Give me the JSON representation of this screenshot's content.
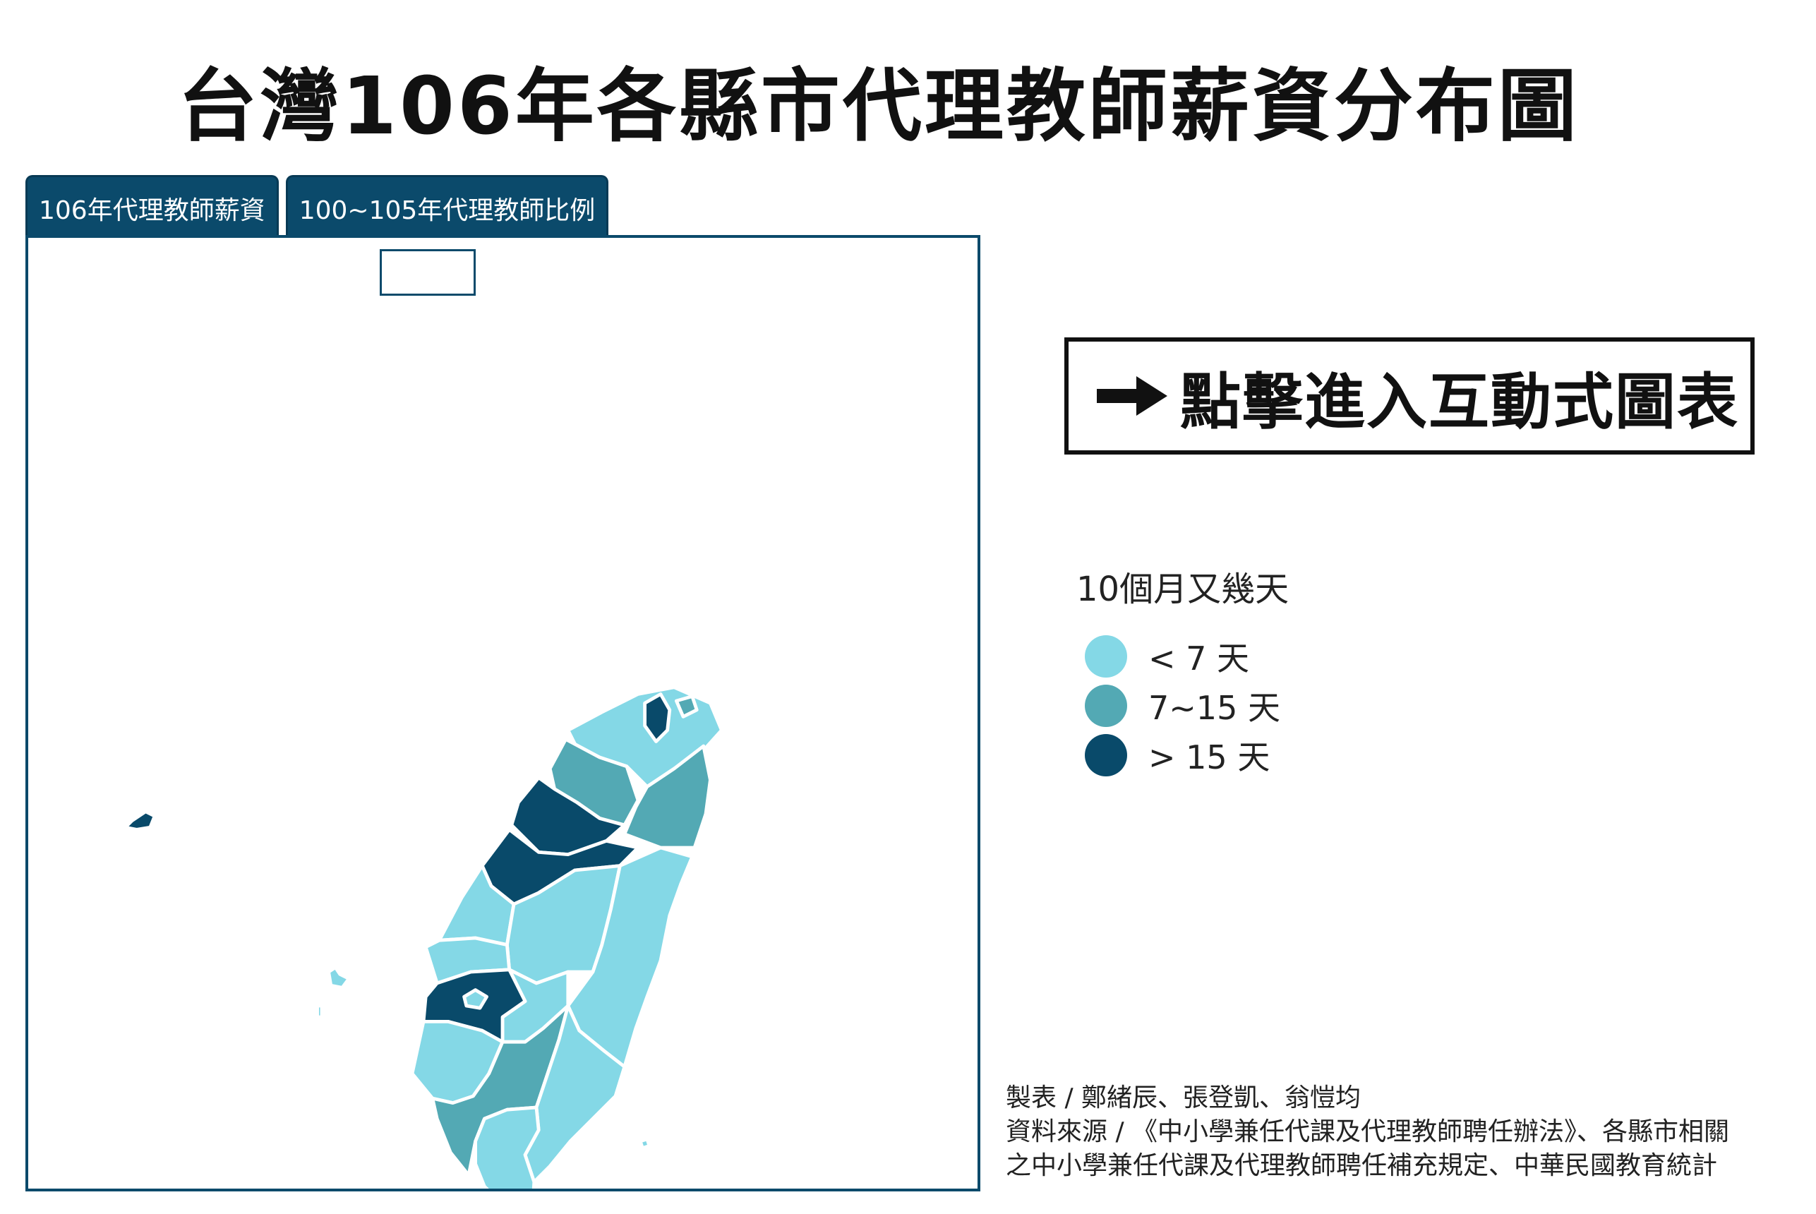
{
  "title": "台灣106年各縣市代理教師薪資分布圖",
  "tabs": [
    {
      "label": "106年代理教師薪資",
      "active": true
    },
    {
      "label": "100~105年代理教師比例",
      "active": false
    }
  ],
  "cta": {
    "label": "點擊進入互動式圖表",
    "icon": "arrow-right-icon"
  },
  "legend": {
    "title": "10個月又幾天",
    "items": [
      {
        "label": "< 7 天",
        "color": "#84d8e6"
      },
      {
        "label": "7~15 天",
        "color": "#53a9b4"
      },
      {
        "label": "> 15 天",
        "color": "#094a6a"
      }
    ]
  },
  "credits": {
    "line1": "製表 / 鄭緒辰、張登凱、翁愷均",
    "line2": "資料來源 / 《中小學兼任代課及代理教師聘任辦法》、各縣市相關",
    "line3": "之中小學兼任代課及代理教師聘任補充規定、中華民國教育統計"
  },
  "colors": {
    "low": "#84d8e6",
    "mid": "#53a9b4",
    "high": "#094a6a",
    "frame": "#0b4a6b"
  }
}
